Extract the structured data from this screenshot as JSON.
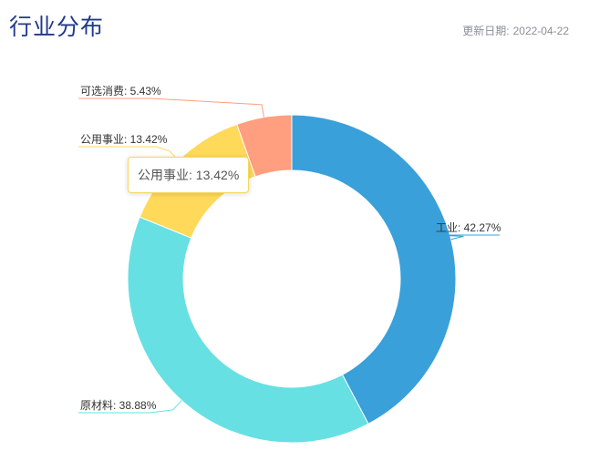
{
  "header": {
    "title": "行业分布",
    "update_label": "更新日期:",
    "update_date": "2022-04-22"
  },
  "tooltip": {
    "text": "公用事业: 13.42%"
  },
  "chart_data": {
    "type": "pie",
    "style": "donut",
    "slices": [
      {
        "name": "工业",
        "value": 42.27,
        "label": "工业: 42.27%",
        "color": "#39a0da"
      },
      {
        "name": "原材料",
        "value": 38.88,
        "label": "原材料: 38.88%",
        "color": "#66e0e3"
      },
      {
        "name": "公用事业",
        "value": 13.42,
        "label": "公用事业: 13.42%",
        "color": "#ffd95a"
      },
      {
        "name": "可选消费",
        "value": 5.43,
        "label": "可选消费: 5.43%",
        "color": "#ff9f7f"
      }
    ]
  }
}
